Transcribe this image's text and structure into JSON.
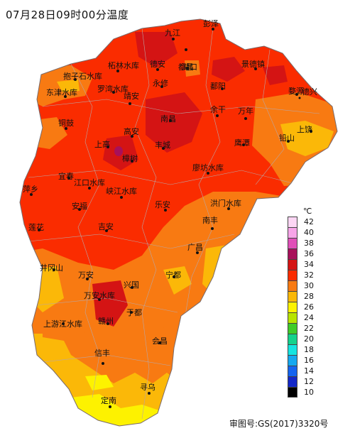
{
  "title": "07月28日09时00分温度",
  "approval": "审图号:GS(2017)3320号",
  "legend": {
    "unit": "℃",
    "levels": [
      {
        "label": "42",
        "color": "#fcd6f4"
      },
      {
        "label": "40",
        "color": "#f7a5e8"
      },
      {
        "label": "38",
        "color": "#e04fb8"
      },
      {
        "label": "36",
        "color": "#a8105a"
      },
      {
        "label": "34",
        "color": "#d41414"
      },
      {
        "label": "32",
        "color": "#fa2c00"
      },
      {
        "label": "30",
        "color": "#f87a12"
      },
      {
        "label": "28",
        "color": "#fbb808"
      },
      {
        "label": "26",
        "color": "#fdf200"
      },
      {
        "label": "24",
        "color": "#b8e400"
      },
      {
        "label": "22",
        "color": "#3fcc28"
      },
      {
        "label": "20",
        "color": "#14d28c"
      },
      {
        "label": "18",
        "color": "#14e4e0"
      },
      {
        "label": "16",
        "color": "#14a8f0"
      },
      {
        "label": "14",
        "color": "#1464f0"
      },
      {
        "label": "12",
        "color": "#1428c8"
      },
      {
        "label": "10",
        "color": "#000000"
      }
    ]
  },
  "cities": [
    {
      "name": "彭泽"
    },
    {
      "name": "九江"
    },
    {
      "name": "湖口"
    },
    {
      "name": "柘林水库"
    },
    {
      "name": "德安"
    },
    {
      "name": "都昌"
    },
    {
      "name": "景德镇"
    },
    {
      "name": "抱子石水库"
    },
    {
      "name": "罗湾水库"
    },
    {
      "name": "永修"
    },
    {
      "name": "鄱阳"
    },
    {
      "name": "东津水库"
    },
    {
      "name": "靖安"
    },
    {
      "name": "婺源"
    },
    {
      "name": "南昌"
    },
    {
      "name": "余干"
    },
    {
      "name": "万年"
    },
    {
      "name": "德兴"
    },
    {
      "name": "铜鼓"
    },
    {
      "name": "高安"
    },
    {
      "name": "上饶"
    },
    {
      "name": "上高"
    },
    {
      "name": "铅山"
    },
    {
      "name": "丰城"
    },
    {
      "name": "鹰潭"
    },
    {
      "name": "樟树"
    },
    {
      "name": "宜春"
    },
    {
      "name": "廖坊水库"
    },
    {
      "name": "江口水库"
    },
    {
      "name": "萍乡"
    },
    {
      "name": "峡江水库"
    },
    {
      "name": "安福"
    },
    {
      "name": "乐安"
    },
    {
      "name": "洪门水库"
    },
    {
      "name": "莲花"
    },
    {
      "name": "吉安"
    },
    {
      "name": "南丰"
    },
    {
      "name": "广昌"
    },
    {
      "name": "井冈山"
    },
    {
      "name": "万安"
    },
    {
      "name": "宁都"
    },
    {
      "name": "兴国"
    },
    {
      "name": "万安水库"
    },
    {
      "name": "于都"
    },
    {
      "name": "赣州"
    },
    {
      "name": "上游江水库"
    },
    {
      "name": "会昌"
    },
    {
      "name": "信丰"
    },
    {
      "name": "寻乌"
    },
    {
      "name": "定南"
    }
  ]
}
